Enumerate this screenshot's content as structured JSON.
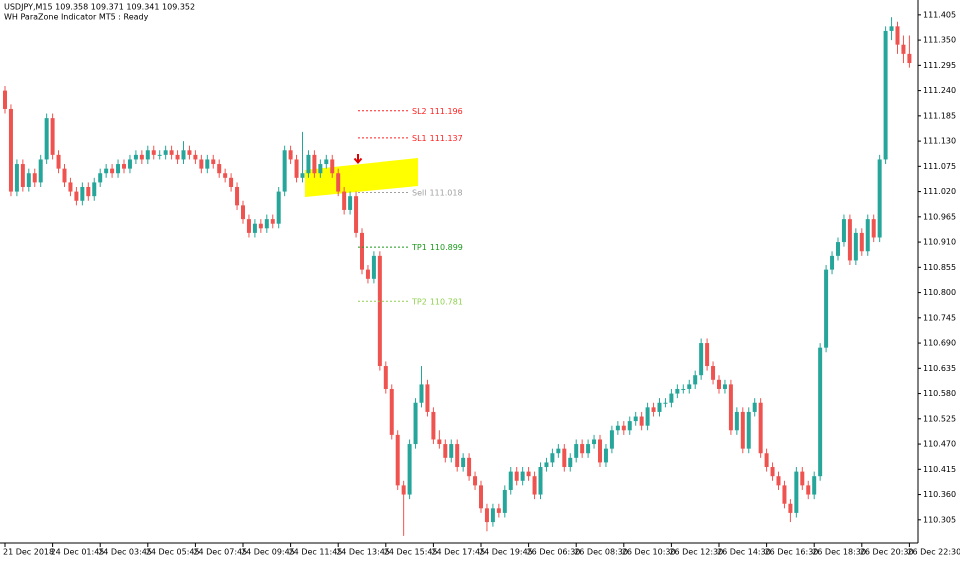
{
  "chart_data": {
    "type": "candlestick",
    "header": [
      "USDJPY,M15  109.358 109.371 109.341 109.352",
      "WH ParaZone Indicator MT5 : Ready"
    ],
    "up_color": "#26a69a",
    "down_color": "#ef5350",
    "ylim": [
      110.261,
      111.433
    ],
    "yticks": [
      111.405,
      {
        "value": 111.35,
        "label": "111.350"
      },
      111.295,
      {
        "value": 111.24,
        "label": "111.240"
      },
      111.185,
      {
        "value": 111.13,
        "label": "111.130"
      },
      111.075,
      {
        "value": 111.02,
        "label": "111.020"
      },
      110.965,
      {
        "value": 110.91,
        "label": "110.910"
      },
      110.855,
      {
        "value": 110.8,
        "label": "110.800"
      },
      110.745,
      {
        "value": 110.69,
        "label": "110.690"
      },
      110.635,
      {
        "value": 110.58,
        "label": "110.580"
      },
      110.525,
      {
        "value": 110.47,
        "label": "110.470"
      },
      110.415,
      {
        "value": 110.36,
        "label": "110.360"
      },
      110.305
    ],
    "levels": [
      {
        "name": "SL2",
        "value": 111.196,
        "color": "#ff2020"
      },
      {
        "name": "SL1",
        "value": 111.137,
        "color": "#ff2020"
      },
      {
        "name": "Sell",
        "value": 111.018,
        "color": "#a0a0a0"
      },
      {
        "name": "TP1",
        "value": 110.899,
        "color": "#1a9a1a"
      },
      {
        "name": "TP2",
        "value": 110.781,
        "color": "#8fd14f"
      }
    ],
    "categories": [
      "21 Dec 2018",
      null,
      null,
      null,
      null,
      null,
      null,
      null,
      "24 Dec 01:45",
      null,
      null,
      null,
      null,
      null,
      null,
      null,
      "24 Dec 03:45",
      null,
      null,
      null,
      null,
      null,
      null,
      null,
      "24 Dec 05:45",
      null,
      null,
      null,
      null,
      null,
      null,
      null,
      "24 Dec 07:45",
      null,
      null,
      null,
      null,
      null,
      null,
      null,
      "24 Dec 09:45",
      null,
      null,
      null,
      null,
      null,
      null,
      null,
      "24 Dec 11:45",
      null,
      null,
      null,
      null,
      null,
      null,
      null,
      "24 Dec 13:45",
      null,
      null,
      null,
      null,
      null,
      null,
      null,
      "24 Dec 15:45",
      null,
      null,
      null,
      null,
      null,
      null,
      null,
      "24 Dec 17:45",
      null,
      null,
      null,
      null,
      null,
      null,
      null,
      "24 Dec 19:45",
      null,
      null,
      null,
      null,
      null,
      null,
      null,
      "26 Dec 06:30",
      null,
      null,
      null,
      null,
      null,
      null,
      null,
      "26 Dec 08:30",
      null,
      null,
      null,
      null,
      null,
      null,
      null,
      "26 Dec 10:30",
      null,
      null,
      null,
      null,
      null,
      null,
      null,
      "26 Dec 12:30",
      null,
      null,
      null,
      null,
      null,
      null,
      null,
      "26 Dec 14:30",
      null,
      null,
      null,
      null,
      null,
      null,
      null,
      "26 Dec 16:30",
      null,
      null,
      null,
      null,
      null,
      null,
      null,
      "26 Dec 18:30",
      null,
      null,
      null,
      null,
      null,
      null,
      null,
      "26 Dec 20:30",
      null,
      null,
      null,
      null,
      null,
      null,
      null,
      "26 Dec 22:30"
    ],
    "candles": [
      [
        111.24,
        111.25,
        111.19,
        111.2
      ],
      [
        111.2,
        111.21,
        111.01,
        111.02
      ],
      [
        111.02,
        111.09,
        111.01,
        111.08
      ],
      [
        111.08,
        111.09,
        111.02,
        111.03
      ],
      [
        111.03,
        111.07,
        111.02,
        111.06
      ],
      [
        111.06,
        111.07,
        111.03,
        111.04
      ],
      [
        111.04,
        111.1,
        111.03,
        111.09
      ],
      [
        111.09,
        111.19,
        111.08,
        111.18
      ],
      [
        111.18,
        111.19,
        111.09,
        111.1
      ],
      [
        111.1,
        111.11,
        111.06,
        111.07
      ],
      [
        111.07,
        111.08,
        111.03,
        111.04
      ],
      [
        111.04,
        111.05,
        111.01,
        111.02
      ],
      [
        111.02,
        111.03,
        110.99,
        111.0
      ],
      [
        111.0,
        111.04,
        110.99,
        111.03
      ],
      [
        111.03,
        111.04,
        111.0,
        111.01
      ],
      [
        111.01,
        111.05,
        111.0,
        111.04
      ],
      [
        111.04,
        111.07,
        111.03,
        111.06
      ],
      [
        111.06,
        111.08,
        111.05,
        111.07
      ],
      [
        111.07,
        111.08,
        111.05,
        111.06
      ],
      [
        111.06,
        111.09,
        111.05,
        111.08
      ],
      [
        111.08,
        111.09,
        111.06,
        111.07
      ],
      [
        111.07,
        111.1,
        111.06,
        111.09
      ],
      [
        111.09,
        111.11,
        111.08,
        111.1
      ],
      [
        111.1,
        111.11,
        111.08,
        111.09
      ],
      [
        111.09,
        111.12,
        111.08,
        111.11
      ],
      [
        111.11,
        111.12,
        111.09,
        111.1
      ],
      [
        111.1,
        111.11,
        111.09,
        111.1
      ],
      [
        111.1,
        111.12,
        111.09,
        111.11
      ],
      [
        111.11,
        111.12,
        111.09,
        111.1
      ],
      [
        111.1,
        111.11,
        111.08,
        111.09
      ],
      [
        111.09,
        111.13,
        111.08,
        111.11
      ],
      [
        111.11,
        111.12,
        111.09,
        111.1
      ],
      [
        111.1,
        111.11,
        111.08,
        111.09
      ],
      [
        111.09,
        111.1,
        111.06,
        111.07
      ],
      [
        111.07,
        111.1,
        111.06,
        111.09
      ],
      [
        111.09,
        111.1,
        111.07,
        111.08
      ],
      [
        111.08,
        111.09,
        111.05,
        111.06
      ],
      [
        111.06,
        111.07,
        111.04,
        111.05
      ],
      [
        111.05,
        111.06,
        111.02,
        111.03
      ],
      [
        111.03,
        111.04,
        110.98,
        110.99
      ],
      [
        110.99,
        111.0,
        110.95,
        110.96
      ],
      [
        110.96,
        110.97,
        110.92,
        110.93
      ],
      [
        110.93,
        110.96,
        110.92,
        110.95
      ],
      [
        110.95,
        110.96,
        110.93,
        110.94
      ],
      [
        110.94,
        110.97,
        110.93,
        110.96
      ],
      [
        110.96,
        110.97,
        110.94,
        110.95
      ],
      [
        110.95,
        111.03,
        110.94,
        111.02
      ],
      [
        111.02,
        111.12,
        111.01,
        111.11
      ],
      [
        111.11,
        111.12,
        111.08,
        111.09
      ],
      [
        111.09,
        111.1,
        111.04,
        111.05
      ],
      [
        111.05,
        111.15,
        111.04,
        111.06
      ],
      [
        111.06,
        111.11,
        111.05,
        111.1
      ],
      [
        111.1,
        111.11,
        111.05,
        111.06
      ],
      [
        111.06,
        111.09,
        111.05,
        111.08
      ],
      [
        111.08,
        111.1,
        111.07,
        111.09
      ],
      [
        111.09,
        111.1,
        111.05,
        111.06
      ],
      [
        111.06,
        111.07,
        111.01,
        111.02
      ],
      [
        111.02,
        111.03,
        110.97,
        110.98
      ],
      [
        110.98,
        111.02,
        110.97,
        111.01
      ],
      [
        111.01,
        111.02,
        110.92,
        110.93
      ],
      [
        110.93,
        110.94,
        110.84,
        110.85
      ],
      [
        110.85,
        110.86,
        110.82,
        110.83
      ],
      [
        110.83,
        110.89,
        110.82,
        110.88
      ],
      [
        110.88,
        110.89,
        110.63,
        110.64
      ],
      [
        110.64,
        110.65,
        110.58,
        110.59
      ],
      [
        110.59,
        110.6,
        110.48,
        110.49
      ],
      [
        110.49,
        110.5,
        110.37,
        110.38
      ],
      [
        110.38,
        110.39,
        110.27,
        110.36
      ],
      [
        110.36,
        110.48,
        110.35,
        110.47
      ],
      [
        110.47,
        110.57,
        110.46,
        110.56
      ],
      [
        110.56,
        110.64,
        110.55,
        110.6
      ],
      [
        110.6,
        110.61,
        110.53,
        110.54
      ],
      [
        110.54,
        110.55,
        110.47,
        110.48
      ],
      [
        110.48,
        110.5,
        110.46,
        110.47
      ],
      [
        110.47,
        110.48,
        110.43,
        110.44
      ],
      [
        110.44,
        110.48,
        110.43,
        110.47
      ],
      [
        110.47,
        110.48,
        110.41,
        110.42
      ],
      [
        110.42,
        110.45,
        110.41,
        110.44
      ],
      [
        110.44,
        110.45,
        110.39,
        110.4
      ],
      [
        110.4,
        110.41,
        110.37,
        110.38
      ],
      [
        110.38,
        110.39,
        110.32,
        110.33
      ],
      [
        110.33,
        110.34,
        110.28,
        110.3
      ],
      [
        110.3,
        110.34,
        110.29,
        110.33
      ],
      [
        110.33,
        110.34,
        110.31,
        110.32
      ],
      [
        110.32,
        110.38,
        110.31,
        110.37
      ],
      [
        110.37,
        110.42,
        110.36,
        110.41
      ],
      [
        110.41,
        110.42,
        110.38,
        110.39
      ],
      [
        110.39,
        110.42,
        110.38,
        110.41
      ],
      [
        110.41,
        110.42,
        110.39,
        110.4
      ],
      [
        110.4,
        110.41,
        110.35,
        110.36
      ],
      [
        110.36,
        110.43,
        110.35,
        110.42
      ],
      [
        110.42,
        110.44,
        110.41,
        110.43
      ],
      [
        110.43,
        110.46,
        110.42,
        110.45
      ],
      [
        110.45,
        110.47,
        110.44,
        110.46
      ],
      [
        110.46,
        110.47,
        110.41,
        110.42
      ],
      [
        110.42,
        110.45,
        110.41,
        110.44
      ],
      [
        110.44,
        110.48,
        110.43,
        110.47
      ],
      [
        110.47,
        110.48,
        110.44,
        110.45
      ],
      [
        110.45,
        110.48,
        110.44,
        110.47
      ],
      [
        110.47,
        110.49,
        110.46,
        110.48
      ],
      [
        110.48,
        110.49,
        110.42,
        110.43
      ],
      [
        110.43,
        110.47,
        110.42,
        110.46
      ],
      [
        110.46,
        110.51,
        110.45,
        110.5
      ],
      [
        110.5,
        110.52,
        110.49,
        110.51
      ],
      [
        110.51,
        110.52,
        110.49,
        110.5
      ],
      [
        110.5,
        110.53,
        110.49,
        110.52
      ],
      [
        110.52,
        110.54,
        110.51,
        110.53
      ],
      [
        110.53,
        110.54,
        110.5,
        110.51
      ],
      [
        110.51,
        110.56,
        110.5,
        110.55
      ],
      [
        110.55,
        110.56,
        110.53,
        110.54
      ],
      [
        110.54,
        110.57,
        110.53,
        110.56
      ],
      [
        110.56,
        110.57,
        110.55,
        110.56
      ],
      [
        110.56,
        110.59,
        110.55,
        110.58
      ],
      [
        110.58,
        110.6,
        110.57,
        110.59
      ],
      [
        110.59,
        110.6,
        110.58,
        110.59
      ],
      [
        110.59,
        110.61,
        110.58,
        110.6
      ],
      [
        110.6,
        110.63,
        110.59,
        110.62
      ],
      [
        110.62,
        110.7,
        110.61,
        110.69
      ],
      [
        110.69,
        110.7,
        110.63,
        110.64
      ],
      [
        110.64,
        110.65,
        110.6,
        110.61
      ],
      [
        110.61,
        110.62,
        110.58,
        110.59
      ],
      [
        110.59,
        110.61,
        110.58,
        110.6
      ],
      [
        110.6,
        110.61,
        110.49,
        110.5
      ],
      [
        110.5,
        110.55,
        110.49,
        110.54
      ],
      [
        110.54,
        110.55,
        110.45,
        110.46
      ],
      [
        110.46,
        110.55,
        110.45,
        110.54
      ],
      [
        110.54,
        110.57,
        110.53,
        110.56
      ],
      [
        110.56,
        110.57,
        110.44,
        110.45
      ],
      [
        110.45,
        110.46,
        110.41,
        110.42
      ],
      [
        110.42,
        110.43,
        110.39,
        110.4
      ],
      [
        110.4,
        110.41,
        110.37,
        110.38
      ],
      [
        110.38,
        110.39,
        110.33,
        110.34
      ],
      [
        110.34,
        110.35,
        110.3,
        110.32
      ],
      [
        110.32,
        110.42,
        110.31,
        110.41
      ],
      [
        110.41,
        110.42,
        110.37,
        110.38
      ],
      [
        110.38,
        110.39,
        110.35,
        110.36
      ],
      [
        110.36,
        110.41,
        110.35,
        110.4
      ],
      [
        110.4,
        110.69,
        110.39,
        110.68
      ],
      [
        110.68,
        110.86,
        110.67,
        110.85
      ],
      [
        110.85,
        110.89,
        110.84,
        110.88
      ],
      [
        110.88,
        110.92,
        110.87,
        110.91
      ],
      [
        110.91,
        110.97,
        110.9,
        110.96
      ],
      [
        110.96,
        110.97,
        110.86,
        110.87
      ],
      [
        110.87,
        110.94,
        110.86,
        110.93
      ],
      [
        110.93,
        110.94,
        110.88,
        110.89
      ],
      [
        110.89,
        110.97,
        110.88,
        110.96
      ],
      [
        110.96,
        110.97,
        110.91,
        110.92
      ],
      [
        110.92,
        111.1,
        110.91,
        111.09
      ],
      [
        111.09,
        111.38,
        111.08,
        111.37
      ],
      [
        111.37,
        111.4,
        111.35,
        111.38
      ],
      [
        111.38,
        111.39,
        111.32,
        111.34
      ],
      [
        111.34,
        111.36,
        111.3,
        111.32
      ],
      [
        111.32,
        111.36,
        111.29,
        111.3
      ]
    ]
  }
}
